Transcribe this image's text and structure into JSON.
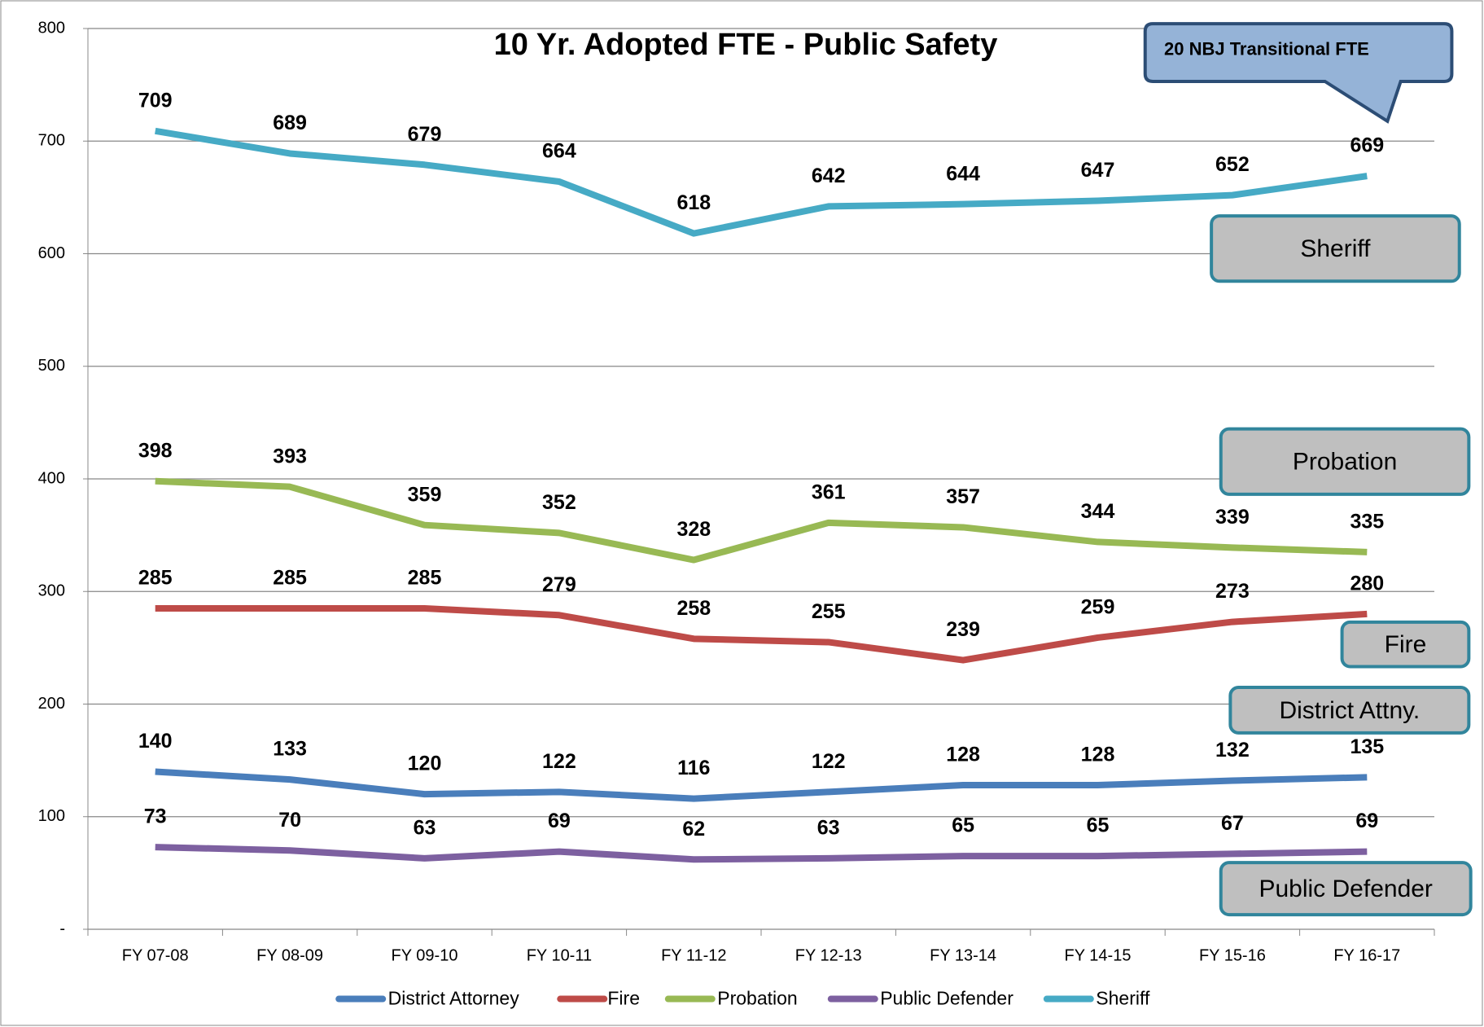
{
  "chart_data": {
    "type": "line",
    "title": "10 Yr. Adopted FTE - Public Safety",
    "categories": [
      "FY 07-08",
      "FY 08-09",
      "FY 09-10",
      "FY 10-11",
      "FY 11-12",
      "FY 12-13",
      "FY 13-14",
      "FY 14-15",
      "FY 15-16",
      "FY 16-17"
    ],
    "series": [
      {
        "name": "District Attorney",
        "color": "#4a7ebb",
        "values": [
          140,
          133,
          120,
          122,
          116,
          122,
          128,
          128,
          132,
          135
        ]
      },
      {
        "name": "Fire",
        "color": "#be4b48",
        "values": [
          285,
          285,
          285,
          279,
          258,
          255,
          239,
          259,
          273,
          280
        ]
      },
      {
        "name": "Probation",
        "color": "#98b954",
        "values": [
          398,
          393,
          359,
          352,
          328,
          361,
          357,
          344,
          339,
          335
        ]
      },
      {
        "name": "Public Defender",
        "color": "#7d60a0",
        "values": [
          73,
          70,
          63,
          69,
          62,
          63,
          65,
          65,
          67,
          69
        ]
      },
      {
        "name": "Sheriff",
        "color": "#46aac5",
        "values": [
          709,
          689,
          679,
          664,
          618,
          642,
          644,
          647,
          652,
          669
        ]
      }
    ],
    "ylim": [
      0,
      800
    ],
    "yticks": [
      {
        "value": 0,
        "label": "-"
      },
      100,
      200,
      300,
      400,
      500,
      600,
      700,
      800
    ],
    "grid": true,
    "legend": "bottom",
    "annotations": [
      "Sheriff",
      "Probation",
      "Fire",
      "District Attny.",
      "Public Defender"
    ],
    "callout": "20 NBJ Transitional FTE"
  }
}
